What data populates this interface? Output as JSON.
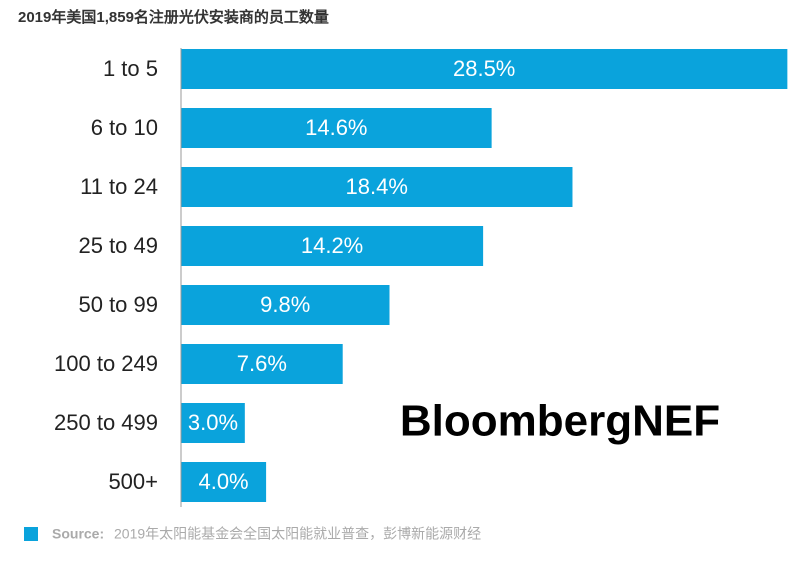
{
  "chart_data": {
    "type": "bar",
    "orientation": "horizontal",
    "title": "2019年美国1,859名注册光伏安装商的员工数量",
    "categories": [
      "1 to 5",
      "6 to 10",
      "11 to 24",
      "25 to 49",
      "50 to 99",
      "100 to 249",
      "250 to 499",
      "500+"
    ],
    "values": [
      28.5,
      14.6,
      18.4,
      14.2,
      9.8,
      7.6,
      3.0,
      4.0
    ],
    "value_labels": [
      "28.5%",
      "14.6%",
      "18.4%",
      "14.2%",
      "9.8%",
      "7.6%",
      "3.0%",
      "4.0%"
    ],
    "color": "#0aa3dc",
    "xlim": [
      0,
      29
    ],
    "watermark": "BloombergNEF",
    "source": {
      "label": "Source:",
      "text": "2019年太阳能基金会全国太阳能就业普查，彭博新能源财经"
    }
  }
}
